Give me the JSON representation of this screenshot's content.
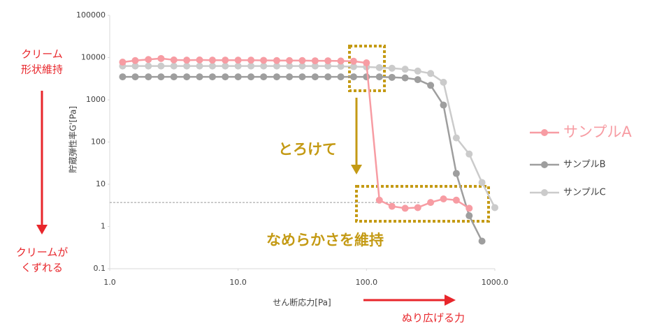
{
  "chart_data": {
    "type": "line",
    "x_label": "せん断応力[Pa]",
    "y_label": "貯蔵弾性率G'[Pa]",
    "xscale": "log",
    "yscale": "log",
    "xlim": [
      1,
      1000
    ],
    "xticks": [
      {
        "value": 1,
        "label": "1.0"
      },
      {
        "value": 10,
        "label": "10.0"
      },
      {
        "value": 100,
        "label": "100.0"
      },
      {
        "value": 1000,
        "label": "1000.0"
      }
    ],
    "ylim": [
      0.1,
      100000
    ],
    "yticks": [
      0.1,
      1,
      10,
      100,
      1000,
      10000,
      100000
    ],
    "grid": false,
    "legend": "right",
    "reference_line": 3.7,
    "series": [
      {
        "name": "サンプルA",
        "color": "#f79ca3",
        "highlight": true,
        "x": [
          1.26,
          1.58,
          2.0,
          2.51,
          3.16,
          3.98,
          5.01,
          6.31,
          7.94,
          10,
          12.6,
          15.8,
          20,
          25.1,
          31.6,
          39.8,
          50.1,
          63.1,
          79.4,
          100,
          126,
          158,
          200,
          251,
          316,
          398,
          501,
          631
        ],
        "values": [
          7800,
          8500,
          9000,
          9500,
          8800,
          8700,
          8800,
          8700,
          8700,
          8700,
          8700,
          8600,
          8500,
          8500,
          8500,
          8400,
          8400,
          8300,
          8200,
          7500,
          4.2,
          3.0,
          2.7,
          2.8,
          3.7,
          4.5,
          4.2,
          2.7
        ]
      },
      {
        "name": "サンプルB",
        "color": "#9e9e9e",
        "highlight": false,
        "x": [
          1.26,
          1.58,
          2.0,
          2.51,
          3.16,
          3.98,
          5.01,
          6.31,
          7.94,
          10,
          12.6,
          15.8,
          20,
          25.1,
          31.6,
          39.8,
          50.1,
          63.1,
          79.4,
          100,
          126,
          158,
          200,
          251,
          316,
          398,
          501,
          631,
          794
        ],
        "values": [
          3500,
          3500,
          3500,
          3500,
          3500,
          3500,
          3500,
          3500,
          3500,
          3500,
          3500,
          3500,
          3500,
          3500,
          3500,
          3500,
          3500,
          3500,
          3500,
          3500,
          3500,
          3400,
          3300,
          3000,
          2200,
          750,
          18,
          1.8,
          0.45
        ]
      },
      {
        "name": "サンプルC",
        "color": "#cbcbcb",
        "highlight": false,
        "x": [
          1.26,
          1.58,
          2.0,
          2.51,
          3.16,
          3.98,
          5.01,
          6.31,
          7.94,
          10,
          12.6,
          15.8,
          20,
          25.1,
          31.6,
          39.8,
          50.1,
          63.1,
          79.4,
          100,
          126,
          158,
          200,
          251,
          316,
          398,
          501,
          631,
          794,
          1000
        ],
        "values": [
          6300,
          6300,
          6300,
          6300,
          6300,
          6300,
          6300,
          6300,
          6300,
          6300,
          6300,
          6300,
          6300,
          6300,
          6300,
          6300,
          6300,
          6200,
          6100,
          6000,
          5800,
          5600,
          5300,
          4800,
          4200,
          2600,
          125,
          52,
          11,
          2.8
        ]
      }
    ],
    "annotations": [
      "クリーム",
      "形状維持",
      "クリームが",
      "くずれる",
      "とろけて",
      "なめらかさを維持",
      "ぬり広げる力"
    ]
  }
}
